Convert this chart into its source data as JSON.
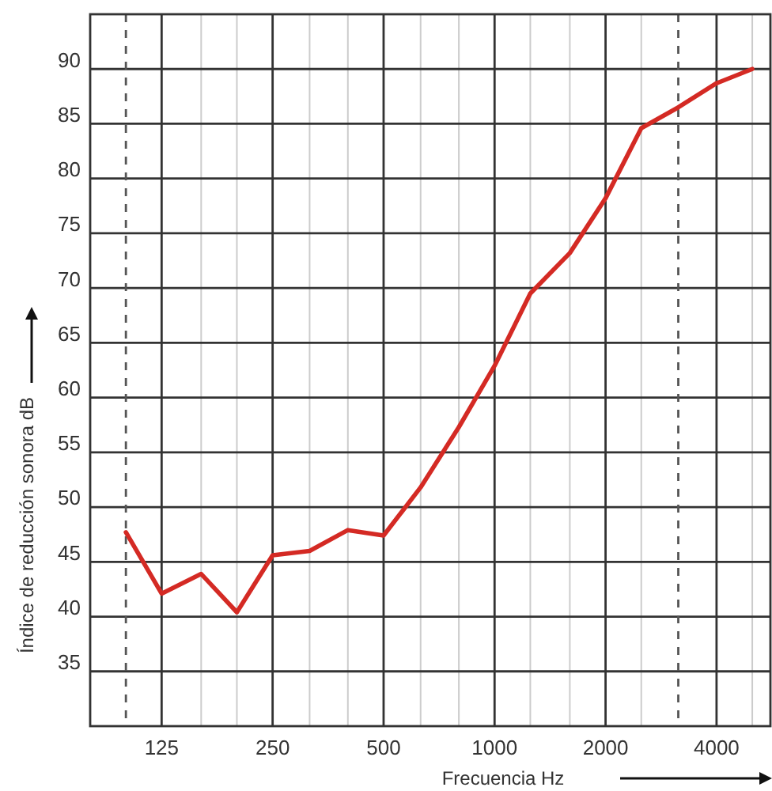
{
  "chart_data": {
    "type": "line",
    "xlabel": "Frecuencia Hz",
    "ylabel": "Índice de reducción sonora dB",
    "x": [
      100,
      125,
      160,
      200,
      250,
      315,
      400,
      500,
      630,
      800,
      1000,
      1250,
      1600,
      2000,
      2500,
      3150,
      4000,
      5000
    ],
    "series": [
      {
        "color": "#d42a24",
        "values": [
          47.7,
          42.1,
          43.9,
          40.4,
          45.6,
          46.0,
          47.9,
          47.4,
          51.8,
          57.3,
          62.9,
          69.5,
          73.2,
          78.2,
          84.6,
          86.5,
          88.7,
          90
        ]
      }
    ],
    "log": "x",
    "xlim": [
      80,
      5600
    ],
    "ylim": [
      30,
      95
    ],
    "xticks": [
      125,
      {
        "value": 160,
        "label": null
      },
      {
        "value": 200,
        "label": null
      },
      250,
      {
        "value": 315,
        "label": null
      },
      {
        "value": 400,
        "label": null
      },
      500,
      {
        "value": 630,
        "label": null
      },
      {
        "value": 800,
        "label": null
      },
      1000,
      {
        "value": 1250,
        "label": null
      },
      {
        "value": 1600,
        "label": null
      },
      2000,
      {
        "value": 2500,
        "label": null
      },
      4000,
      {
        "value": 5000,
        "label": null
      }
    ],
    "yticks": [
      35,
      40,
      45,
      50,
      55,
      60,
      65,
      70,
      75,
      80,
      85,
      90
    ],
    "grid": true,
    "line_style": "solid",
    "marker": "none",
    "ref_lines": [
      {
        "axis": "x",
        "value": 100,
        "color": "#555555",
        "line_style": "dashed"
      },
      {
        "axis": "x",
        "value": 3150,
        "color": "#555555",
        "line_style": "dashed"
      }
    ]
  }
}
